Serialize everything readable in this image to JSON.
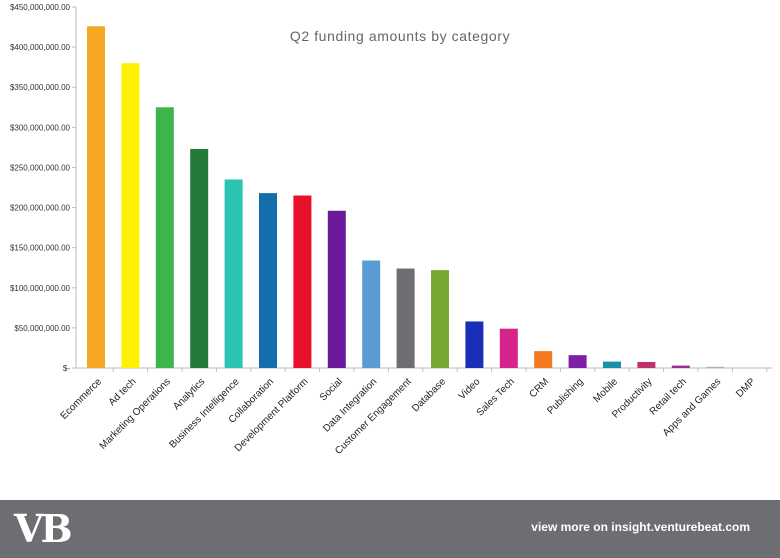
{
  "chart_data": {
    "type": "bar",
    "title": "Q2 funding amounts by category",
    "xlabel": "",
    "ylabel": "",
    "ylim": [
      0,
      450000000
    ],
    "y_ticks": [
      0,
      50000000,
      100000000,
      150000000,
      200000000,
      250000000,
      300000000,
      350000000,
      400000000,
      450000000
    ],
    "y_tick_labels": [
      "$-",
      "$50,000,000.00",
      "$100,000,000.00",
      "$150,000,000.00",
      "$200,000,000.00",
      "$250,000,000.00",
      "$300,000,000.00",
      "$350,000,000.00",
      "$400,000,000.00",
      "$450,000,000.00"
    ],
    "grid": false,
    "legend": "none",
    "categories": [
      "Ecommerce",
      "Ad tech",
      "Marketing Operations",
      "Analytics",
      "Business Intelligence",
      "Collaboration",
      "Development Platform",
      "Social",
      "Data Integration",
      "Customer Engagement",
      "Database",
      "Video",
      "Sales Tech",
      "CRM",
      "Publishing",
      "Mobile",
      "Productivity",
      "Retail tech",
      "Apps and Games",
      "DMP"
    ],
    "values": [
      426000000,
      380000000,
      325000000,
      273000000,
      235000000,
      218000000,
      215000000,
      196000000,
      134000000,
      124000000,
      122000000,
      58000000,
      49000000,
      21000000,
      16000000,
      8000000,
      7500000,
      3000000,
      1500000,
      0
    ],
    "colors": [
      "#f5a623",
      "#fff200",
      "#3db54a",
      "#237a3a",
      "#2bc4b4",
      "#136fab",
      "#e8102a",
      "#6a1a9a",
      "#5b9bd5",
      "#6d6e71",
      "#76a832",
      "#1a2fb8",
      "#d6238a",
      "#f47a20",
      "#7b1fa8",
      "#1a8fa5",
      "#c0306a",
      "#9b2e8f",
      "#b0b0b0",
      "#cccccc"
    ]
  },
  "footer": {
    "logo_text": "VB",
    "link_text": "view more on insight.venturebeat.com",
    "background": "#6d6e71"
  }
}
